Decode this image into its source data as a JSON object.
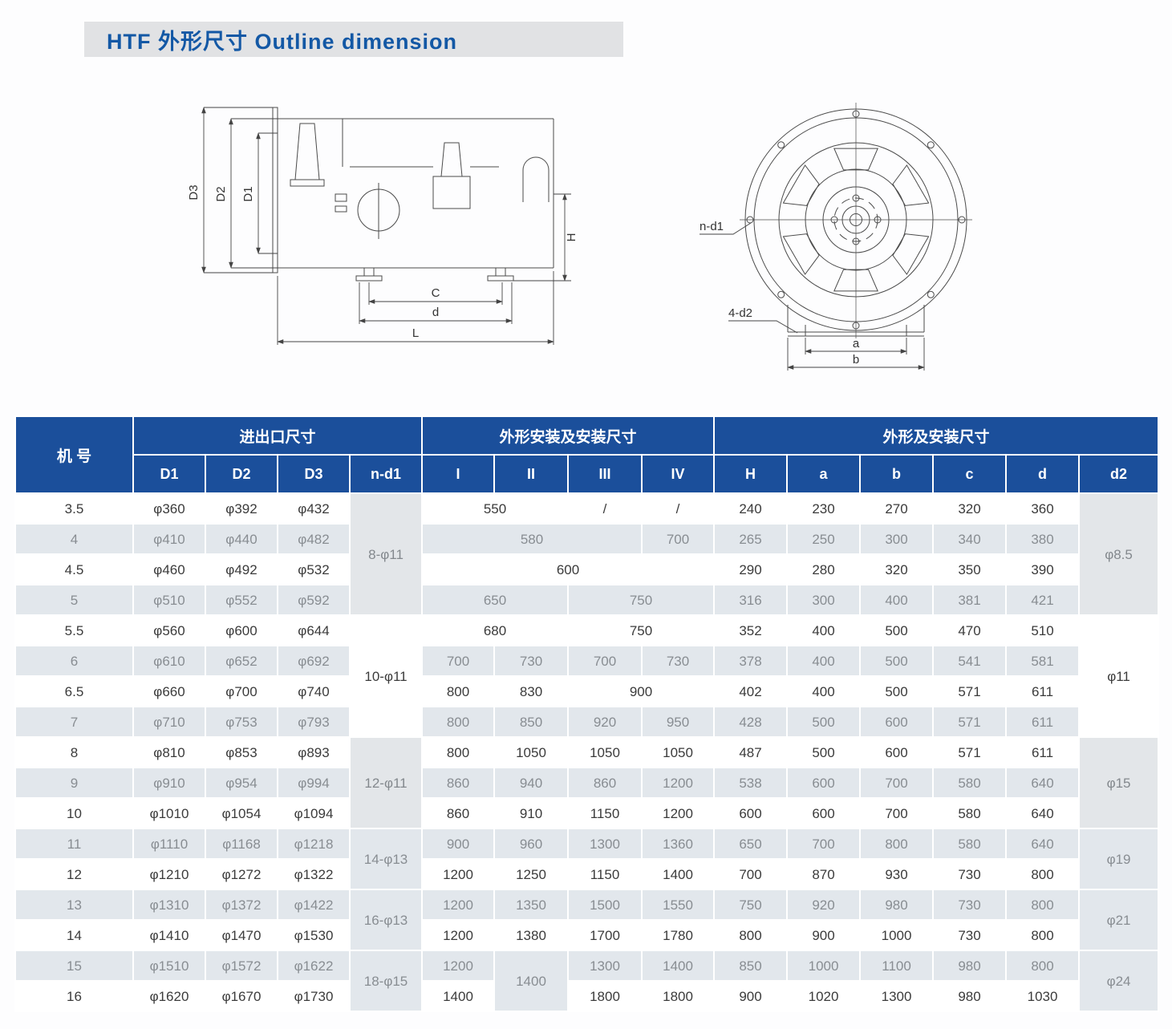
{
  "title": "HTF 外形尺寸 Outline dimension",
  "colors": {
    "header_blue": "#1b4f9b",
    "title_blue": "#1358a5",
    "title_bar_bg": "#e1e2e4",
    "row_alt": "#e2e7ec",
    "merged_gray": "#e3e6e9"
  },
  "diagrams": {
    "side_view": {
      "labels": {
        "D3": "D3",
        "D2": "D2",
        "D1": "D1",
        "H": "H",
        "C": "C",
        "d": "d",
        "L": "L"
      }
    },
    "front_view": {
      "labels": {
        "n_d1": "n-d1",
        "four_d2": "4-d2",
        "a": "a",
        "b": "b"
      }
    }
  },
  "table": {
    "corner_label": "机  号",
    "groups": [
      {
        "label": "进出口尺寸",
        "span": 4
      },
      {
        "label": "外形安装及安装尺寸",
        "span": 4
      },
      {
        "label": "外形及安装尺寸",
        "span": 6
      }
    ],
    "sub_headers": [
      "D1",
      "D2",
      "D3",
      "n-d1",
      "I",
      "II",
      "III",
      "IV",
      "H",
      "a",
      "b",
      "c",
      "d",
      "d2"
    ],
    "rows": [
      [
        "3.5",
        "φ360",
        "φ392",
        "φ432",
        {
          "t": "8-φ11",
          "rs": 4,
          "bg": "gray"
        },
        {
          "t": "550",
          "cs": 2
        },
        "/",
        "/",
        "240",
        "230",
        "270",
        "320",
        "360",
        {
          "t": "φ8.5",
          "rs": 4,
          "bg": "gray"
        }
      ],
      [
        "4",
        "φ410",
        "φ440",
        "φ482",
        {
          "t": "580",
          "cs": 3
        },
        "700",
        "265",
        "250",
        "300",
        "340",
        "380"
      ],
      [
        "4.5",
        "φ460",
        "φ492",
        "φ532",
        {
          "t": "600",
          "cs": 4
        },
        "290",
        "280",
        "320",
        "350",
        "390"
      ],
      [
        "5",
        "φ510",
        "φ552",
        "φ592",
        {
          "t": "650",
          "cs": 2
        },
        {
          "t": "750",
          "cs": 2
        },
        "316",
        "300",
        "400",
        "381",
        "421"
      ],
      [
        "5.5",
        "φ560",
        "φ600",
        "φ644",
        {
          "t": "10-φ11",
          "rs": 4,
          "bg": "white"
        },
        {
          "t": "680",
          "cs": 2
        },
        {
          "t": "750",
          "cs": 2
        },
        "352",
        "400",
        "500",
        "470",
        "510",
        {
          "t": "φ11",
          "rs": 4,
          "bg": "white"
        }
      ],
      [
        "6",
        "φ610",
        "φ652",
        "φ692",
        "700",
        "730",
        "700",
        "730",
        "378",
        "400",
        "500",
        "541",
        "581"
      ],
      [
        "6.5",
        "φ660",
        "φ700",
        "φ740",
        "800",
        "830",
        {
          "t": "900",
          "cs": 2
        },
        "402",
        "400",
        "500",
        "571",
        "611"
      ],
      [
        "7",
        "φ710",
        "φ753",
        "φ793",
        "800",
        "850",
        "920",
        "950",
        "428",
        "500",
        "600",
        "571",
        "611"
      ],
      [
        "8",
        "φ810",
        "φ853",
        "φ893",
        {
          "t": "12-φ11",
          "rs": 3,
          "bg": "gray"
        },
        "800",
        "1050",
        "1050",
        "1050",
        "487",
        "500",
        "600",
        "571",
        "611",
        {
          "t": "φ15",
          "rs": 3,
          "bg": "gray"
        }
      ],
      [
        "9",
        "φ910",
        "φ954",
        "φ994",
        "860",
        "940",
        "860",
        "1200",
        "538",
        "600",
        "700",
        "580",
        "640"
      ],
      [
        "10",
        "φ1010",
        "φ1054",
        "φ1094",
        "860",
        "910",
        "1150",
        "1200",
        "600",
        "600",
        "700",
        "580",
        "640"
      ],
      [
        "11",
        "φ1110",
        "φ1168",
        "φ1218",
        {
          "t": "14-φ13",
          "rs": 2,
          "bg": "white"
        },
        "900",
        "960",
        "1300",
        "1360",
        "650",
        "700",
        "800",
        "580",
        "640",
        {
          "t": "φ19",
          "rs": 2,
          "bg": "white"
        }
      ],
      [
        "12",
        "φ1210",
        "φ1272",
        "φ1322",
        "1200",
        "1250",
        "1150",
        "1400",
        "700",
        "870",
        "930",
        "730",
        "800"
      ],
      [
        "13",
        "φ1310",
        "φ1372",
        "φ1422",
        {
          "t": "16-φ13",
          "rs": 2,
          "bg": "gray"
        },
        "1200",
        "1350",
        "1500",
        "1550",
        "750",
        "920",
        "980",
        "730",
        "800",
        {
          "t": "φ21",
          "rs": 2,
          "bg": "gray"
        }
      ],
      [
        "14",
        "φ1410",
        "φ1470",
        "φ1530",
        "1200",
        "1380",
        "1700",
        "1780",
        "800",
        "900",
        "1000",
        "730",
        "800"
      ],
      [
        "15",
        "φ1510",
        "φ1572",
        "φ1622",
        {
          "t": "18-φ15",
          "rs": 2,
          "bg": "white"
        },
        "1200",
        {
          "t": "1400",
          "rs": 2,
          "bg": "white"
        },
        "1300",
        "1400",
        "850",
        "1000",
        "1100",
        "980",
        "800",
        {
          "t": "φ24",
          "rs": 2,
          "bg": "white"
        }
      ],
      [
        "16",
        "φ1620",
        "φ1670",
        "φ1730",
        "1400",
        "1800",
        "1800",
        "900",
        "1020",
        "1300",
        "980",
        "1030"
      ]
    ]
  }
}
